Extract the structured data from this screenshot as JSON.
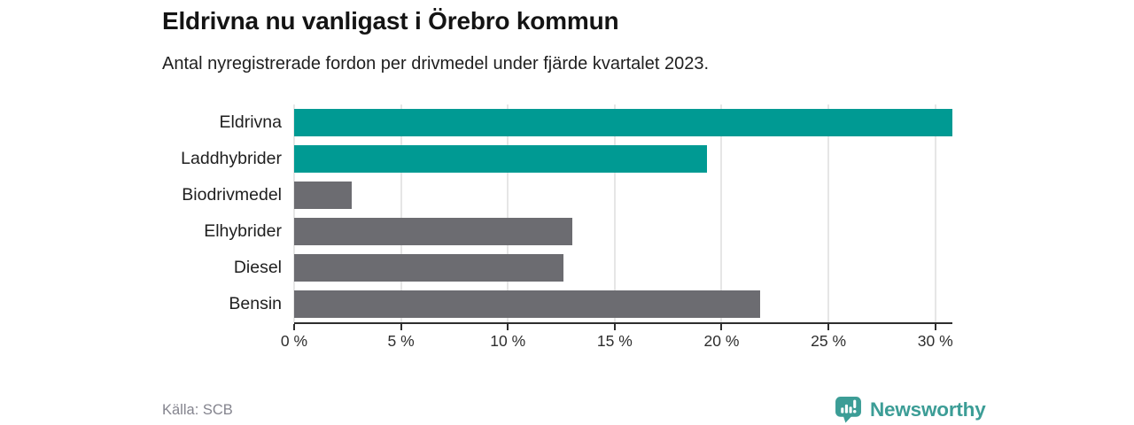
{
  "header": {
    "title": "Eldrivna nu vanligast i Örebro kommun",
    "subtitle": "Antal nyregistrerade fordon per drivmedel under fjärde kvartalet 2023."
  },
  "chart_data": {
    "type": "bar",
    "orientation": "horizontal",
    "title": "Eldrivna nu vanligast i Örebro kommun",
    "subtitle": "Antal nyregistrerade fordon per drivmedel under fjärde kvartalet 2023.",
    "categories": [
      "Eldrivna",
      "Laddhybrider",
      "Biodrivmedel",
      "Elhybrider",
      "Diesel",
      "Bensin"
    ],
    "values": [
      30.8,
      19.3,
      2.7,
      13.0,
      12.6,
      21.8
    ],
    "unit": "%",
    "xlim": [
      0,
      30.8
    ],
    "x_ticks": [
      0,
      5,
      10,
      15,
      20,
      25,
      30
    ],
    "x_tick_labels": [
      "0 %",
      "5 %",
      "10 %",
      "15 %",
      "20 %",
      "25 %",
      "30 %"
    ],
    "bar_colors": [
      "#009a93",
      "#009a93",
      "#6c6c71",
      "#6c6c71",
      "#6c6c71",
      "#6c6c71"
    ],
    "highlight_color": "#009a93",
    "default_color": "#6c6c71",
    "grid": true,
    "legend": "none"
  },
  "footer": {
    "source": "Källa: SCB",
    "brand": "Newsworthy",
    "brand_color": "#3c9d96"
  }
}
